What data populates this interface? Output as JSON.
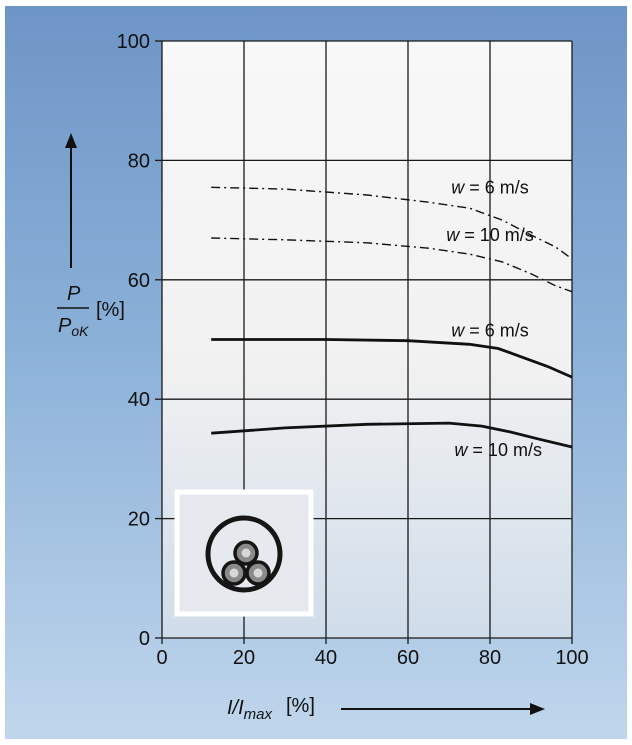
{
  "chart_data": {
    "type": "line",
    "x_axis": {
      "label_main": "I/I",
      "label_sub": "max",
      "label_unit": "[%]",
      "ticks": [
        "0",
        "20",
        "40",
        "60",
        "80",
        "100"
      ],
      "range": [
        0,
        100
      ]
    },
    "y_axis": {
      "label_num": "P",
      "label_den_main": "P",
      "label_den_sub": "oK",
      "label_unit": "[%]",
      "ticks": [
        "0",
        "20",
        "40",
        "60",
        "80",
        "100"
      ],
      "range": [
        0,
        100
      ]
    },
    "grid": true,
    "series": [
      {
        "name": "w = 6 m/s",
        "style": "dashdot",
        "label_x": 80,
        "label_y": 75.5,
        "points": [
          [
            12,
            75.5
          ],
          [
            30,
            75.2
          ],
          [
            50,
            74.2
          ],
          [
            65,
            73
          ],
          [
            75,
            72
          ],
          [
            83,
            70
          ],
          [
            90,
            67.5
          ],
          [
            96,
            65.5
          ],
          [
            100,
            63.5
          ]
        ]
      },
      {
        "name": "w = 10 m/s",
        "style": "dashdot",
        "label_x": 80,
        "label_y": 67.5,
        "points": [
          [
            12,
            67
          ],
          [
            30,
            66.7
          ],
          [
            50,
            66.2
          ],
          [
            65,
            65.3
          ],
          [
            75,
            64.3
          ],
          [
            83,
            63
          ],
          [
            90,
            61
          ],
          [
            96,
            59
          ],
          [
            100,
            58
          ]
        ]
      },
      {
        "name": "w = 6 m/s",
        "style": "solid",
        "label_x": 80,
        "label_y": 51.5,
        "points": [
          [
            12,
            50
          ],
          [
            40,
            50
          ],
          [
            60,
            49.8
          ],
          [
            75,
            49.2
          ],
          [
            82,
            48.5
          ],
          [
            88,
            47
          ],
          [
            94,
            45.5
          ],
          [
            100,
            43.7
          ]
        ]
      },
      {
        "name": "w = 10 m/s",
        "style": "solid",
        "label_x": 82,
        "label_y": 31.5,
        "points": [
          [
            12,
            34.3
          ],
          [
            30,
            35.2
          ],
          [
            50,
            35.8
          ],
          [
            70,
            36
          ],
          [
            78,
            35.5
          ],
          [
            85,
            34.5
          ],
          [
            92,
            33.3
          ],
          [
            100,
            32
          ]
        ]
      }
    ],
    "label_parts": {
      "w": "w",
      "eq": " = ",
      "v6": "6 m/s",
      "v10": "10 m/s"
    }
  },
  "inset": {
    "description_icon": "three-core-cable-cross-section-icon"
  },
  "colors": {
    "background_top": "#6e95c6",
    "background_bottom": "#c0d6ec",
    "plot_area": "#f3f3f3",
    "line": "#111111"
  }
}
